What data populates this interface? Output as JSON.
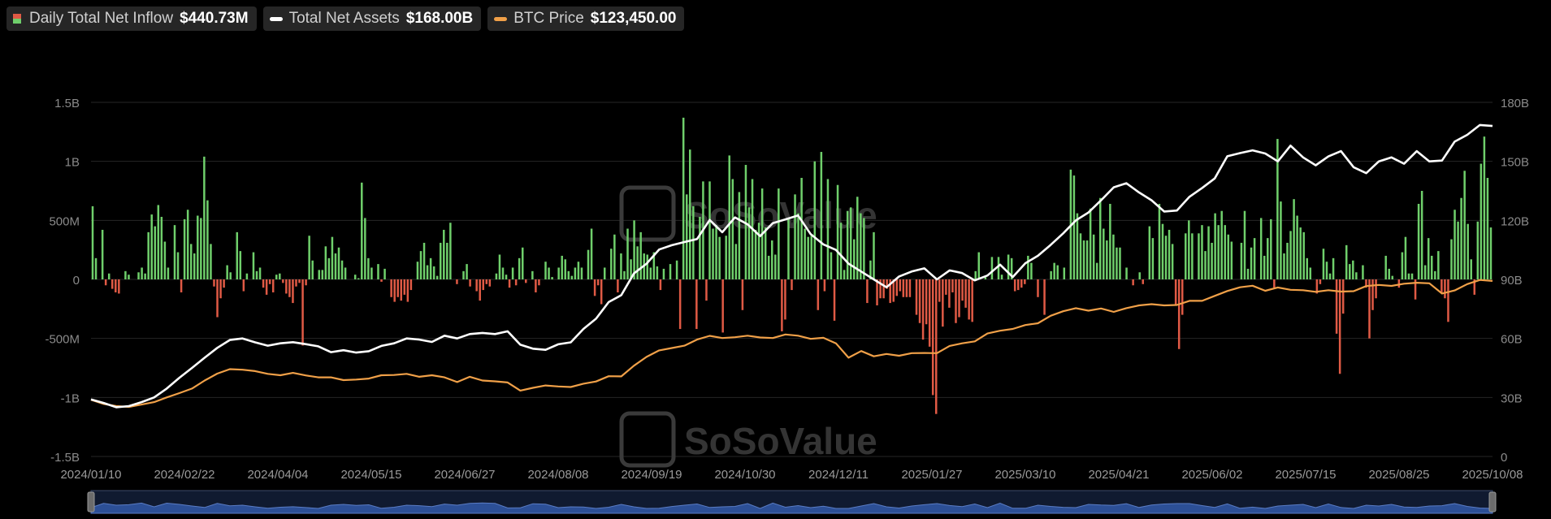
{
  "legend": {
    "inflow_label": "Daily Total Net Inflow",
    "inflow_value": "$440.73M",
    "assets_label": "Total Net Assets",
    "assets_value": "$168.00B",
    "btc_label": "BTC Price",
    "btc_value": "$123,450.00"
  },
  "watermark": "SoSoValue",
  "colors": {
    "inflow_positive": "#6fcf6b",
    "inflow_negative": "#e05a45",
    "net_assets": "#ffffff",
    "btc_price": "#f0a048",
    "navigator": "#2c4f96"
  },
  "chart_data": {
    "type": "bar",
    "left_axis": {
      "ticks": [
        "1.5B",
        "1B",
        "500M",
        "0",
        "-500M",
        "-1B",
        "-1.5B"
      ],
      "range": [
        -1.5,
        1.5
      ],
      "unit": "B"
    },
    "right_axis": {
      "ticks": [
        "180B",
        "150B",
        "120B",
        "90B",
        "60B",
        "30B",
        "0"
      ],
      "range": [
        0,
        180
      ],
      "unit": "B"
    },
    "x_labels": [
      "2024/01/10",
      "2024/02/22",
      "2024/04/04",
      "2024/05/15",
      "2024/06/27",
      "2024/08/08",
      "2024/09/19",
      "2024/10/30",
      "2024/12/11",
      "2025/01/27",
      "2025/03/10",
      "2025/04/21",
      "2025/06/02",
      "2025/07/15",
      "2025/08/25",
      "2025/10/08"
    ],
    "grid": true,
    "series": [
      {
        "name": "Daily Total Net Inflow",
        "axis": "left",
        "unit": "B",
        "values": [
          0.62,
          0.18,
          0.0,
          0.42,
          -0.05,
          0.05,
          -0.08,
          -0.11,
          -0.12,
          0.0,
          0.07,
          0.04,
          0.0,
          0.0,
          0.06,
          0.1,
          0.05,
          0.4,
          0.55,
          0.45,
          0.63,
          0.53,
          0.32,
          0.1,
          0.0,
          0.46,
          0.23,
          -0.11,
          0.51,
          0.59,
          0.3,
          0.22,
          0.54,
          0.52,
          1.04,
          0.67,
          0.3,
          -0.06,
          -0.32,
          -0.16,
          -0.07,
          0.12,
          0.06,
          0.0,
          0.4,
          0.24,
          -0.1,
          0.05,
          0.0,
          0.23,
          0.07,
          0.1,
          -0.07,
          -0.13,
          -0.04,
          -0.11,
          0.04,
          0.05,
          -0.03,
          -0.12,
          -0.15,
          -0.2,
          -0.06,
          -0.03,
          -0.56,
          -0.05,
          0.37,
          0.16,
          0.0,
          0.08,
          0.08,
          0.28,
          0.18,
          0.36,
          0.22,
          0.27,
          0.16,
          0.1,
          0.0,
          0.0,
          0.04,
          0.01,
          0.82,
          0.52,
          0.18,
          0.1,
          0.0,
          0.13,
          -0.02,
          0.09,
          0.0,
          -0.15,
          -0.19,
          -0.15,
          -0.18,
          -0.13,
          -0.19,
          -0.09,
          0.0,
          0.15,
          0.24,
          0.31,
          0.12,
          0.18,
          0.11,
          0.03,
          0.31,
          0.42,
          0.31,
          0.48,
          0.0,
          -0.04,
          0.0,
          0.07,
          0.13,
          -0.06,
          0.0,
          -0.1,
          -0.18,
          -0.09,
          -0.04,
          -0.06,
          0.0,
          0.05,
          0.21,
          0.1,
          0.04,
          -0.07,
          0.1,
          -0.05,
          0.18,
          0.27,
          -0.03,
          0.0,
          0.07,
          -0.11,
          -0.05,
          0.0,
          0.15,
          0.1,
          0.02,
          0.0,
          0.1,
          0.2,
          0.17,
          0.07,
          0.03,
          0.1,
          0.15,
          0.1,
          0.0,
          0.25,
          0.43,
          -0.14,
          -0.05,
          -0.21,
          0.1,
          0.0,
          0.26,
          0.38,
          -0.11,
          0.22,
          0.07,
          0.43,
          0.17,
          0.5,
          0.28,
          0.4,
          0.22,
          0.21,
          0.1,
          0.23,
          0.11,
          -0.09,
          0.09,
          0.0,
          0.13,
          0.0,
          0.16,
          -0.42,
          1.37,
          0.72,
          1.1,
          0.62,
          -0.42,
          0.53,
          0.83,
          -0.18,
          0.83,
          0.43,
          0.46,
          0.36,
          -0.45,
          0.37,
          1.05,
          0.85,
          0.3,
          0.74,
          -0.26,
          0.97,
          0.61,
          0.85,
          0.42,
          0.48,
          0.77,
          0.44,
          0.2,
          0.33,
          0.21,
          0.77,
          -0.44,
          -0.34,
          0.51,
          -0.09,
          0.72,
          0.56,
          0.86,
          0.43,
          0.36,
          0.37,
          1.0,
          -0.26,
          1.08,
          -0.1,
          0.85,
          0.23,
          -0.35,
          0.8,
          0.48,
          0.08,
          0.58,
          0.61,
          0.34,
          0.7,
          0.56,
          0.52,
          -0.2,
          0.16,
          0.4,
          -0.22,
          -0.16,
          -0.16,
          -0.08,
          -0.2,
          -0.19,
          -0.14,
          -0.1,
          -0.15,
          -0.15,
          -0.15,
          0.0,
          -0.3,
          -0.37,
          -0.51,
          -0.38,
          -0.57,
          -0.98,
          -1.14,
          -0.19,
          -0.4,
          -0.13,
          -0.24,
          -0.11,
          -0.37,
          -0.32,
          -0.18,
          -0.24,
          -0.34,
          -0.36,
          0.07,
          0.23,
          0.0,
          0.03,
          0.0,
          0.19,
          0.0,
          0.19,
          0.04,
          0.0,
          0.21,
          0.18,
          -0.1,
          -0.09,
          -0.07,
          -0.04,
          0.2,
          0.14,
          0.0,
          -0.15,
          0.0,
          -0.3,
          0.0,
          0.07,
          0.14,
          0.12,
          0.0,
          0.1,
          0.0,
          0.93,
          0.88,
          0.56,
          0.39,
          0.33,
          0.33,
          0.6,
          0.38,
          0.14,
          0.69,
          0.43,
          0.33,
          0.64,
          0.38,
          0.27,
          0.27,
          0.0,
          0.1,
          0.0,
          -0.05,
          0.0,
          0.06,
          -0.04,
          0.0,
          0.45,
          0.35,
          0.0,
          0.64,
          0.47,
          0.37,
          0.42,
          0.3,
          -0.21,
          -0.59,
          -0.3,
          0.39,
          0.5,
          0.39,
          0.0,
          0.39,
          0.46,
          0.24,
          0.45,
          0.31,
          0.56,
          0.46,
          0.58,
          0.46,
          0.38,
          0.32,
          0.0,
          0.0,
          0.31,
          0.58,
          0.09,
          0.27,
          0.35,
          0.0,
          0.52,
          0.2,
          0.35,
          0.51,
          -0.07,
          1.19,
          0.66,
          0.22,
          0.31,
          0.41,
          0.68,
          0.54,
          0.44,
          0.4,
          0.18,
          0.1,
          0.0,
          -0.12,
          -0.04,
          0.26,
          0.15,
          0.05,
          0.18,
          -0.46,
          -0.8,
          -0.29,
          0.29,
          0.13,
          0.16,
          0.06,
          0.0,
          0.12,
          -0.07,
          -0.5,
          -0.26,
          -0.16,
          0.0,
          0.0,
          0.2,
          0.09,
          0.03,
          0.0,
          -0.07,
          0.23,
          0.36,
          0.05,
          0.05,
          -0.17,
          0.64,
          0.75,
          0.12,
          0.35,
          0.2,
          0.07,
          0.24,
          -0.12,
          -0.16,
          -0.36,
          0.34,
          0.59,
          0.49,
          0.69,
          0.92,
          0.47,
          0.17,
          -0.13,
          0.49,
          0.98,
          1.21,
          0.86,
          0.44
        ]
      },
      {
        "name": "Total Net Assets",
        "axis": "right",
        "unit": "B",
        "values": [
          29.0,
          27.2,
          25.0,
          25.6,
          27.6,
          30.0,
          34.5,
          40.0,
          45.0,
          50.2,
          55.2,
          59.2,
          60.0,
          58.0,
          56.3,
          57.5,
          58.1,
          57.1,
          56.0,
          53.0,
          54.0,
          52.8,
          53.5,
          56.2,
          57.5,
          60.0,
          59.4,
          58.2,
          61.4,
          60.0,
          62.2,
          62.8,
          62.2,
          63.6,
          56.8,
          54.8,
          54.2,
          57.0,
          58.0,
          64.8,
          70.0,
          78.5,
          82.0,
          93.0,
          98.0,
          105.2,
          107.4,
          109.0,
          110.5,
          120.2,
          114.0,
          121.5,
          118.0,
          112.0,
          118.6,
          120.5,
          122.5,
          113.0,
          107.8,
          105.0,
          98.0,
          94.0,
          90.0,
          86.0,
          91.5,
          94.0,
          95.6,
          90.0,
          94.6,
          93.2,
          89.5,
          92.0,
          97.5,
          91.2,
          98.2,
          102.0,
          107.5,
          113.4,
          120.0,
          124.0,
          130.2,
          136.8,
          138.9,
          134.2,
          130.2,
          124.5,
          125.0,
          132.0,
          136.5,
          141.3,
          152.6,
          154.2,
          155.6,
          154.0,
          150.0,
          158.0,
          152.0,
          148.0,
          152.5,
          155.2,
          147.0,
          144.0,
          150.0,
          152.0,
          148.8,
          155.2,
          150.0,
          150.4,
          160.0,
          163.5,
          168.5,
          168.0
        ]
      },
      {
        "name": "BTC Price",
        "axis": "right",
        "unit": "B",
        "values": [
          28.8,
          26.7,
          25.6,
          25.2,
          26.4,
          27.6,
          30.0,
          32.2,
          34.5,
          38.6,
          42.1,
          44.4,
          44.1,
          43.4,
          42.0,
          41.3,
          42.5,
          41.2,
          40.2,
          40.2,
          38.8,
          39.1,
          39.6,
          41.3,
          41.4,
          42.0,
          40.5,
          41.3,
          40.2,
          37.8,
          40.5,
          38.6,
          38.2,
          37.6,
          33.5,
          34.9,
          36.1,
          35.6,
          35.3,
          37.0,
          38.1,
          40.8,
          40.7,
          46.1,
          50.6,
          53.9,
          55.1,
          56.3,
          59.4,
          61.3,
          60.2,
          60.6,
          61.4,
          60.5,
          60.2,
          62.0,
          61.4,
          59.8,
          60.3,
          57.5,
          50.2,
          53.6,
          50.9,
          52.1,
          51.2,
          52.5,
          52.6,
          52.5,
          56.2,
          57.5,
          58.5,
          62.5,
          63.9,
          64.8,
          66.8,
          67.7,
          71.5,
          73.8,
          75.4,
          74.1,
          75.2,
          73.5,
          75.4,
          76.8,
          77.4,
          76.8,
          77.0,
          79.1,
          79.1,
          81.6,
          84.1,
          86.0,
          86.8,
          84.2,
          85.9,
          84.7,
          84.5,
          83.7,
          84.5,
          83.8,
          84.0,
          86.6,
          87.2,
          86.7,
          87.8,
          88.3,
          88.0,
          82.8,
          84.4,
          87.6,
          89.7,
          89.2
        ]
      }
    ]
  }
}
